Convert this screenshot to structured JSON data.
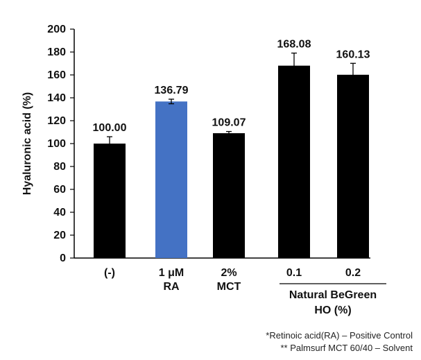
{
  "chart_data": {
    "type": "bar",
    "ylabel": "Hyaluronic acid (%)",
    "ylim": [
      0,
      200
    ],
    "yticks": [
      "0",
      "20",
      "40",
      "60",
      "80",
      "100",
      "120",
      "140",
      "160",
      "180",
      "200"
    ],
    "ytick_values": [
      0,
      20,
      40,
      60,
      80,
      100,
      120,
      140,
      160,
      180,
      200
    ],
    "categories": [
      {
        "line1": "(-)",
        "line2": ""
      },
      {
        "line1": "1 μM",
        "line2": "RA"
      },
      {
        "line1": "2%",
        "line2": "MCT"
      },
      {
        "line1": "0.1",
        "line2": ""
      },
      {
        "line1": "0.2",
        "line2": ""
      }
    ],
    "values": [
      100.0,
      136.79,
      109.07,
      168.08,
      160.13
    ],
    "value_labels": [
      "100.00",
      "136.79",
      "109.07",
      "168.08",
      "160.13"
    ],
    "errors": [
      6,
      2,
      1.5,
      11,
      10
    ],
    "bar_colors": [
      "#000000",
      "#4472c4",
      "#000000",
      "#000000",
      "#000000"
    ],
    "group_label": {
      "line1": "Natural BeGreen",
      "line2": "HO (%)"
    },
    "grid": false,
    "legend": "none"
  },
  "footnotes": {
    "line1": "*Retinoic acid(RA) – Positive Control",
    "line2": "** Palmsurf MCT 60/40 – Solvent"
  }
}
